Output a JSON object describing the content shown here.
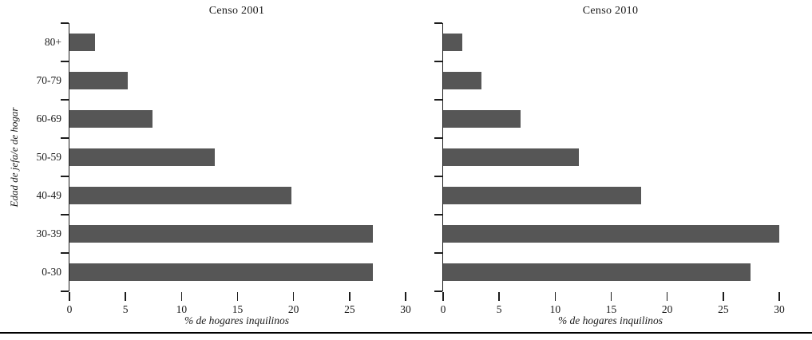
{
  "chart_data": [
    {
      "type": "bar",
      "orientation": "horizontal",
      "title": "Censo 2001",
      "categories": [
        "80+",
        "70-79",
        "60-69",
        "50-59",
        "40-49",
        "30-39",
        "0-30"
      ],
      "values": [
        2.3,
        5.2,
        7.4,
        13.0,
        19.8,
        27.1,
        27.1
      ],
      "xlabel": "% de hogares inquilinos",
      "ylabel": "Edad de jefa/e de hogar",
      "xlim": [
        0,
        30
      ],
      "x_ticks": [
        0,
        5,
        10,
        15,
        20,
        25,
        30
      ],
      "bar_color": "#565656",
      "grid": false,
      "legend": "none",
      "show_category_labels": true
    },
    {
      "type": "bar",
      "orientation": "horizontal",
      "title": "Censo 2010",
      "categories": [
        "80+",
        "70-79",
        "60-69",
        "50-59",
        "40-49",
        "30-39",
        "0-30"
      ],
      "values": [
        1.7,
        3.4,
        6.9,
        12.1,
        17.7,
        30.0,
        27.4
      ],
      "xlabel": "% de hogares inquilinos",
      "ylabel": "",
      "xlim": [
        0,
        30
      ],
      "x_ticks": [
        0,
        5,
        10,
        15,
        20,
        25,
        30
      ],
      "bar_color": "#565656",
      "grid": false,
      "legend": "none",
      "show_category_labels": false
    }
  ]
}
